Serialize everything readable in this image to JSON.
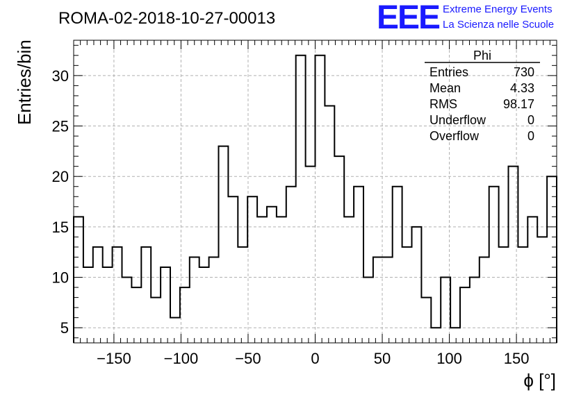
{
  "chart_data": {
    "type": "bar",
    "style": "step-histogram",
    "title": "ROMA-02-2018-10-27-00013",
    "xlabel": "ϕ [°]",
    "ylabel": "Entries/bin",
    "xlim": [
      -180,
      180
    ],
    "ylim": [
      3.5,
      33.5
    ],
    "bin_width": 7.2,
    "bin_edges_start": -180,
    "values": [
      16,
      11,
      13,
      11,
      13,
      10,
      9,
      13,
      8,
      11,
      6,
      9,
      12,
      11,
      12,
      23,
      18,
      13,
      18,
      16,
      17,
      16,
      19,
      32,
      21,
      32,
      27,
      22,
      16,
      19,
      10,
      12,
      12,
      19,
      13,
      15,
      8,
      5,
      10,
      5,
      9,
      10,
      12,
      19,
      13,
      21,
      13,
      16,
      14,
      20
    ],
    "xticks": [
      -150,
      -100,
      -50,
      0,
      50,
      100,
      150
    ],
    "xtick_labels": [
      "−150",
      "−100",
      "−50",
      "0",
      "50",
      "100",
      "150"
    ],
    "yticks": [
      5,
      10,
      15,
      20,
      25,
      30
    ],
    "ytick_labels": [
      "5",
      "10",
      "15",
      "20",
      "25",
      "30"
    ],
    "grid": true,
    "line_color": "#000000",
    "grid_color": "#b0b0b0"
  },
  "logo": {
    "mark": "EEE",
    "line1": "Extreme Energy Events",
    "line2": "La Scienza nelle Scuole",
    "color": "#1a1aff"
  },
  "stats": {
    "name": "Phi",
    "rows": [
      {
        "label": "Entries",
        "value": "730"
      },
      {
        "label": "Mean",
        "value": "4.33"
      },
      {
        "label": "RMS",
        "value": "98.17"
      },
      {
        "label": "Underflow",
        "value": "0"
      },
      {
        "label": "Overflow",
        "value": "0"
      }
    ]
  }
}
